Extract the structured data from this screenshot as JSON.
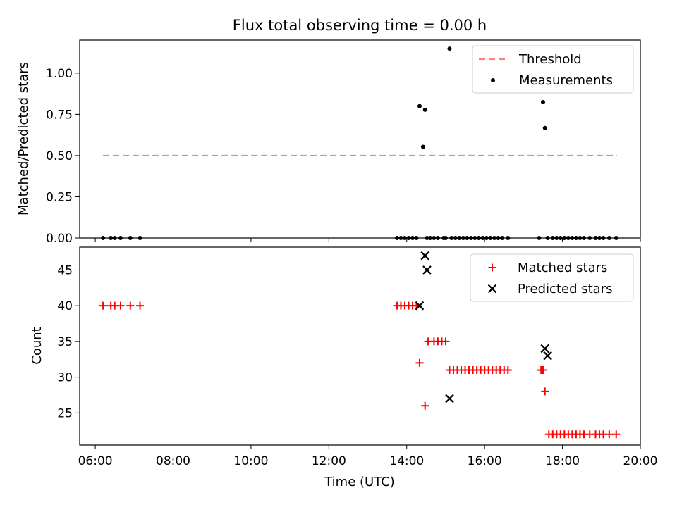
{
  "title": "Flux total observing time = 0.00 h",
  "chart_data": [
    {
      "type": "scatter",
      "title": "Flux total observing time = 0.00 h",
      "xlabel": "",
      "ylabel": "Matched/Predicted stars",
      "xlim": [
        5.6,
        20.0
      ],
      "ylim": [
        0.0,
        1.2
      ],
      "yticks": [
        0.0,
        0.25,
        0.5,
        0.75,
        1.0
      ],
      "ytick_labels": [
        "0.00",
        "0.25",
        "0.50",
        "0.75",
        "1.00"
      ],
      "legend_position": "upper right",
      "series": [
        {
          "name": "Threshold",
          "style": "dashed-line",
          "color": "#ff8080",
          "x": [
            6.2,
            19.4
          ],
          "y": [
            0.5,
            0.5
          ]
        },
        {
          "name": "Measurements",
          "style": "dot",
          "color": "#000000",
          "x": [
            6.2,
            6.4,
            6.5,
            6.65,
            6.9,
            7.15,
            13.75,
            13.85,
            13.95,
            14.05,
            14.15,
            14.25,
            14.33,
            14.42,
            14.47,
            14.52,
            14.6,
            14.7,
            14.8,
            14.95,
            15.0,
            15.1,
            15.15,
            15.25,
            15.35,
            15.45,
            15.55,
            15.65,
            15.75,
            15.85,
            15.95,
            16.05,
            16.15,
            16.25,
            16.35,
            16.45,
            16.6,
            17.4,
            17.5,
            17.55,
            17.62,
            17.75,
            17.85,
            17.95,
            18.05,
            18.15,
            18.25,
            18.35,
            18.45,
            18.55,
            18.7,
            18.85,
            18.95,
            19.05,
            19.2,
            19.38
          ],
          "y": [
            0,
            0,
            0,
            0,
            0,
            0,
            0,
            0,
            0,
            0,
            0,
            0,
            0.8,
            0.553,
            0.778,
            0,
            0,
            0,
            0,
            0,
            0,
            1.148,
            0,
            0,
            0,
            0,
            0,
            0,
            0,
            0,
            0,
            0,
            0,
            0,
            0,
            0,
            0,
            0,
            0.824,
            0.667,
            0,
            0,
            0,
            0,
            0,
            0,
            0,
            0,
            0,
            0,
            0,
            0,
            0,
            0,
            0,
            0
          ]
        }
      ]
    },
    {
      "type": "scatter",
      "title": "",
      "xlabel": "Time (UTC)",
      "ylabel": "Count",
      "xlim": [
        5.6,
        20.0
      ],
      "ylim": [
        20.5,
        48.2
      ],
      "xticks": [
        6,
        8,
        10,
        12,
        14,
        16,
        18,
        20
      ],
      "xtick_labels": [
        "06:00",
        "08:00",
        "10:00",
        "12:00",
        "14:00",
        "16:00",
        "18:00",
        "20:00"
      ],
      "yticks": [
        25,
        30,
        35,
        40,
        45
      ],
      "ytick_labels": [
        "25",
        "30",
        "35",
        "40",
        "45"
      ],
      "legend_position": "upper right",
      "series": [
        {
          "name": "Matched stars",
          "marker": "plus",
          "color": "#ff0000",
          "x": [
            6.2,
            6.4,
            6.5,
            6.65,
            6.9,
            7.15,
            13.75,
            13.85,
            13.95,
            14.05,
            14.15,
            14.25,
            14.33,
            14.47,
            14.55,
            14.7,
            14.8,
            14.9,
            15.0,
            15.1,
            15.2,
            15.3,
            15.4,
            15.5,
            15.6,
            15.7,
            15.8,
            15.9,
            16.0,
            16.1,
            16.2,
            16.3,
            16.4,
            16.5,
            16.6,
            17.45,
            17.5,
            17.55,
            17.65,
            17.75,
            17.85,
            17.95,
            18.05,
            18.15,
            18.25,
            18.35,
            18.45,
            18.55,
            18.7,
            18.85,
            18.95,
            19.05,
            19.2,
            19.38
          ],
          "y": [
            40,
            40,
            40,
            40,
            40,
            40,
            40,
            40,
            40,
            40,
            40,
            40,
            32,
            26,
            35,
            35,
            35,
            35,
            35,
            31,
            31,
            31,
            31,
            31,
            31,
            31,
            31,
            31,
            31,
            31,
            31,
            31,
            31,
            31,
            31,
            31,
            31,
            28,
            22,
            22,
            22,
            22,
            22,
            22,
            22,
            22,
            22,
            22,
            22,
            22,
            22,
            22,
            22,
            22
          ]
        },
        {
          "name": "Predicted stars",
          "marker": "x",
          "color": "#000000",
          "x": [
            14.33,
            14.47,
            14.52,
            15.1,
            17.55,
            17.62
          ],
          "y": [
            40,
            47,
            45,
            27,
            34,
            33
          ]
        }
      ]
    }
  ]
}
